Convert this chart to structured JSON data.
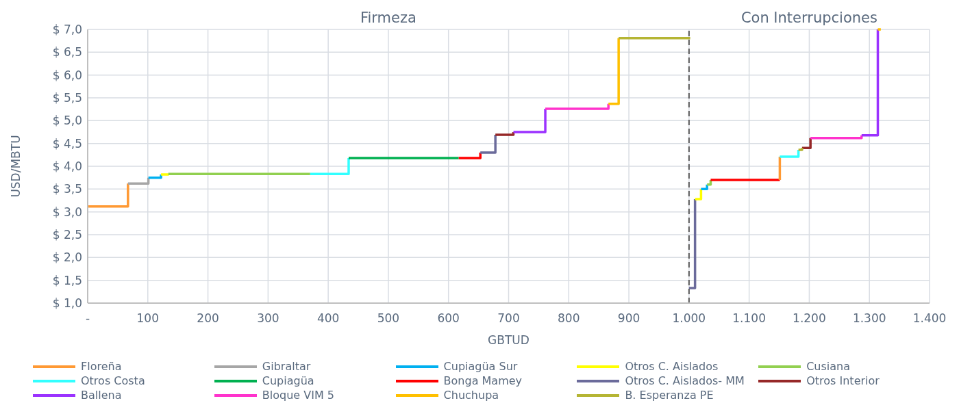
{
  "chart_data": {
    "type": "line",
    "xlabel": "GBTUD",
    "ylabel": "USD/MBTU",
    "annotations": [
      "Firmeza",
      "Con Interrupciones"
    ],
    "xlim": [
      0,
      1400
    ],
    "ylim": [
      1.0,
      7.0
    ],
    "xticks": [
      {
        "value": 0,
        "label": "-"
      },
      100,
      200,
      300,
      400,
      500,
      600,
      700,
      800,
      900,
      {
        "value": 1000,
        "label": "1.000"
      },
      {
        "value": 1100,
        "label": "1.100"
      },
      {
        "value": 1200,
        "label": "1.200"
      },
      {
        "value": 1300,
        "label": "1.300"
      },
      {
        "value": 1400,
        "label": "1.400"
      }
    ],
    "yticks": [
      {
        "value": 1.0,
        "label": "$ 1,0"
      },
      {
        "value": 1.5,
        "label": "$ 1,5"
      },
      {
        "value": 2.0,
        "label": "$ 2,0"
      },
      {
        "value": 2.5,
        "label": "$ 2,5"
      },
      {
        "value": 3.0,
        "label": "$ 3,0"
      },
      {
        "value": 3.5,
        "label": "$ 3,5"
      },
      {
        "value": 4.0,
        "label": "$ 4,0"
      },
      {
        "value": 4.5,
        "label": "$ 4,5"
      },
      {
        "value": 5.0,
        "label": "$ 5,0"
      },
      {
        "value": 5.5,
        "label": "$ 5,5"
      },
      {
        "value": 6.0,
        "label": "$ 6,0"
      },
      {
        "value": 6.5,
        "label": "$ 6,5"
      },
      {
        "value": 7.0,
        "label": "$ 7,0"
      }
    ],
    "grid": true,
    "legend": "bottom",
    "marker": "none",
    "line_style": "solid",
    "ref_lines": [
      {
        "axis": "x",
        "value": 1000,
        "label": null,
        "color": "#595959",
        "line_style": "dashed"
      }
    ],
    "series": [
      {
        "name": "Floreña",
        "color": "#ff9933",
        "x": [
          0,
          67,
          67
        ],
        "values": [
          3.12,
          3.12,
          3.62
        ]
      },
      {
        "name": "Gibraltar",
        "color": "#a6a6a6",
        "x": [
          67,
          101,
          101
        ],
        "values": [
          3.62,
          3.62,
          3.75
        ]
      },
      {
        "name": "Cupiagüa Sur",
        "color": "#00b0f0",
        "x": [
          101,
          122,
          122
        ],
        "values": [
          3.75,
          3.75,
          3.82
        ]
      },
      {
        "name": "Otros C. Aislados",
        "color": "#ffff00",
        "x": [
          122,
          134,
          134
        ],
        "values": [
          3.82,
          3.82,
          3.83
        ]
      },
      {
        "name": "Cusiana",
        "color": "#92d050",
        "x": [
          134,
          370
        ],
        "values": [
          3.83,
          3.83
        ]
      },
      {
        "name": "Otros Costa",
        "color": "#33ffff",
        "x": [
          370,
          434,
          434
        ],
        "values": [
          3.83,
          3.83,
          4.18
        ]
      },
      {
        "name": "Cupiagüa",
        "color": "#00b050",
        "x": [
          434,
          617
        ],
        "values": [
          4.18,
          4.18
        ]
      },
      {
        "name": "Bonga Mamey",
        "color": "#ff0000",
        "x": [
          617,
          653,
          653
        ],
        "values": [
          4.18,
          4.18,
          4.3
        ]
      },
      {
        "name": "Otros C. Aislados- MM",
        "color": "#6b6b9b",
        "x": [
          653,
          678,
          678
        ],
        "values": [
          4.3,
          4.3,
          4.69
        ]
      },
      {
        "name": "Otros Interior",
        "color": "#962828",
        "x": [
          678,
          708,
          708
        ],
        "values": [
          4.69,
          4.69,
          4.75
        ]
      },
      {
        "name": "Ballena",
        "color": "#9b32ff",
        "x": [
          708,
          761,
          761
        ],
        "values": [
          4.75,
          4.75,
          5.26
        ]
      },
      {
        "name": "Bloque VIM 5",
        "color": "#ff33cc",
        "x": [
          761,
          866,
          866
        ],
        "values": [
          5.26,
          5.26,
          5.37
        ]
      },
      {
        "name": "Chuchupa",
        "color": "#ffc000",
        "x": [
          866,
          883,
          883
        ],
        "values": [
          5.37,
          5.37,
          6.81
        ]
      },
      {
        "name": "B. Esperanza PE",
        "color": "#b5b534",
        "x": [
          883,
          1002
        ],
        "values": [
          6.81,
          6.81
        ]
      },
      {
        "color": "#6b6b9b",
        "x": [
          1000,
          1010,
          1010
        ],
        "values": [
          1.33,
          1.33,
          3.28
        ]
      },
      {
        "color": "#ffff00",
        "x": [
          1010,
          1020,
          1020
        ],
        "values": [
          3.28,
          3.28,
          3.5
        ]
      },
      {
        "color": "#00b0f0",
        "x": [
          1020,
          1030,
          1030
        ],
        "values": [
          3.5,
          3.5,
          3.6
        ]
      },
      {
        "color": "#92d050",
        "x": [
          1030,
          1036,
          1036
        ],
        "values": [
          3.6,
          3.6,
          3.7
        ]
      },
      {
        "color": "#ff0000",
        "x": [
          1036,
          1151
        ],
        "values": [
          3.7,
          3.7
        ]
      },
      {
        "color": "#ff9933",
        "x": [
          1151,
          1151
        ],
        "values": [
          3.7,
          4.21
        ]
      },
      {
        "color": "#33ffff",
        "x": [
          1151,
          1182,
          1182
        ],
        "values": [
          4.21,
          4.21,
          4.36
        ]
      },
      {
        "color": "#962828",
        "x": [
          1188,
          1202,
          1202
        ],
        "values": [
          4.4,
          4.4,
          4.62
        ]
      },
      {
        "color": "#b5b534",
        "x": [
          1182,
          1188,
          1188
        ],
        "values": [
          4.36,
          4.36,
          4.4
        ]
      },
      {
        "color": "#ff33cc",
        "x": [
          1202,
          1287,
          1287
        ],
        "values": [
          4.62,
          4.62,
          4.68
        ]
      },
      {
        "color": "#9b32ff",
        "x": [
          1287,
          1314,
          1314
        ],
        "values": [
          4.68,
          4.68,
          7.0
        ]
      },
      {
        "color": "#ffc000",
        "x": [
          1314,
          1319
        ],
        "values": [
          7.0,
          7.0
        ]
      }
    ]
  }
}
